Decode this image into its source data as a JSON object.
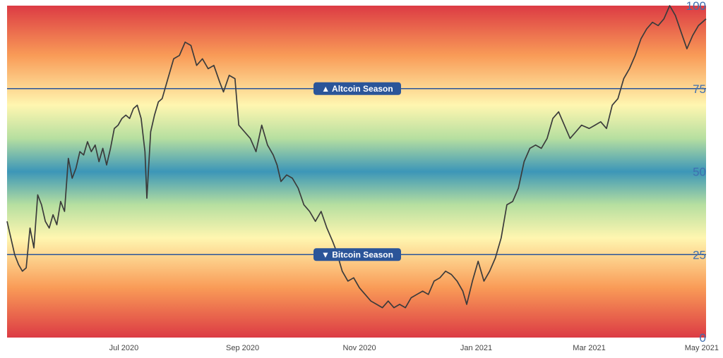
{
  "chart_data": {
    "type": "line",
    "title": "",
    "xlabel": "",
    "ylabel": "",
    "ylim": [
      0,
      100
    ],
    "xlim": [
      "2020-05-01",
      "2021-05-01"
    ],
    "grid": false,
    "y_ticks": [
      {
        "value": 100,
        "label": "100"
      },
      {
        "value": 75,
        "label": "75"
      },
      {
        "value": 50,
        "label": "50"
      },
      {
        "value": 25,
        "label": "25"
      },
      {
        "value": 0,
        "label": "0"
      }
    ],
    "x_ticks": [
      {
        "date": "2020-07-01",
        "label": "Jul 2020"
      },
      {
        "date": "2020-09-01",
        "label": "Sep 2020"
      },
      {
        "date": "2020-11-01",
        "label": "Nov 2020"
      },
      {
        "date": "2021-01-01",
        "label": "Jan 2021"
      },
      {
        "date": "2021-03-01",
        "label": "Mar 2021"
      },
      {
        "date": "2021-05-01",
        "label": "May 2021"
      }
    ],
    "thresholds": [
      {
        "value": 75,
        "label": "▲ Altcoin Season",
        "color": "#2b5599"
      },
      {
        "value": 25,
        "label": "▼ Bitcoin Season",
        "color": "#2b5599"
      }
    ],
    "background_gradient": [
      {
        "value": 100,
        "color": "#dc3b44"
      },
      {
        "value": 85,
        "color": "#f99b57"
      },
      {
        "value": 70,
        "color": "#fff6b0"
      },
      {
        "value": 60,
        "color": "#b6dfa0"
      },
      {
        "value": 50,
        "color": "#3c96b8"
      },
      {
        "value": 40,
        "color": "#b6dfa0"
      },
      {
        "value": 30,
        "color": "#fff6b0"
      },
      {
        "value": 15,
        "color": "#f99b57"
      },
      {
        "value": 0,
        "color": "#dc3b44"
      }
    ],
    "line_color": "#3b3b3b",
    "series": [
      {
        "points": [
          [
            "2020-05-01",
            35
          ],
          [
            "2020-05-03",
            30
          ],
          [
            "2020-05-05",
            25
          ],
          [
            "2020-05-07",
            22
          ],
          [
            "2020-05-09",
            20
          ],
          [
            "2020-05-11",
            21
          ],
          [
            "2020-05-13",
            33
          ],
          [
            "2020-05-15",
            27
          ],
          [
            "2020-05-17",
            43
          ],
          [
            "2020-05-19",
            40
          ],
          [
            "2020-05-21",
            35
          ],
          [
            "2020-05-23",
            33
          ],
          [
            "2020-05-25",
            37
          ],
          [
            "2020-05-27",
            34
          ],
          [
            "2020-05-29",
            41
          ],
          [
            "2020-05-31",
            38
          ],
          [
            "2020-06-02",
            54
          ],
          [
            "2020-06-04",
            48
          ],
          [
            "2020-06-06",
            51
          ],
          [
            "2020-06-08",
            56
          ],
          [
            "2020-06-10",
            55
          ],
          [
            "2020-06-12",
            59
          ],
          [
            "2020-06-14",
            56
          ],
          [
            "2020-06-16",
            58
          ],
          [
            "2020-06-18",
            53
          ],
          [
            "2020-06-20",
            57
          ],
          [
            "2020-06-22",
            52
          ],
          [
            "2020-06-24",
            57
          ],
          [
            "2020-06-26",
            63
          ],
          [
            "2020-06-28",
            64
          ],
          [
            "2020-06-30",
            66
          ],
          [
            "2020-07-02",
            67
          ],
          [
            "2020-07-04",
            66
          ],
          [
            "2020-07-06",
            69
          ],
          [
            "2020-07-08",
            70
          ],
          [
            "2020-07-10",
            66
          ],
          [
            "2020-07-12",
            56
          ],
          [
            "2020-07-13",
            42
          ],
          [
            "2020-07-15",
            62
          ],
          [
            "2020-07-17",
            67
          ],
          [
            "2020-07-19",
            71
          ],
          [
            "2020-07-21",
            72
          ],
          [
            "2020-07-24",
            78
          ],
          [
            "2020-07-27",
            84
          ],
          [
            "2020-07-30",
            85
          ],
          [
            "2020-08-02",
            89
          ],
          [
            "2020-08-05",
            88
          ],
          [
            "2020-08-08",
            82
          ],
          [
            "2020-08-11",
            84
          ],
          [
            "2020-08-14",
            81
          ],
          [
            "2020-08-17",
            82
          ],
          [
            "2020-08-20",
            77
          ],
          [
            "2020-08-22",
            74
          ],
          [
            "2020-08-25",
            79
          ],
          [
            "2020-08-28",
            78
          ],
          [
            "2020-08-30",
            64
          ],
          [
            "2020-09-02",
            62
          ],
          [
            "2020-09-05",
            60
          ],
          [
            "2020-09-08",
            56
          ],
          [
            "2020-09-11",
            64
          ],
          [
            "2020-09-14",
            58
          ],
          [
            "2020-09-17",
            55
          ],
          [
            "2020-09-19",
            52
          ],
          [
            "2020-09-21",
            47
          ],
          [
            "2020-09-24",
            49
          ],
          [
            "2020-09-27",
            48
          ],
          [
            "2020-09-30",
            45
          ],
          [
            "2020-10-03",
            40
          ],
          [
            "2020-10-06",
            38
          ],
          [
            "2020-10-09",
            35
          ],
          [
            "2020-10-12",
            38
          ],
          [
            "2020-10-15",
            33
          ],
          [
            "2020-10-18",
            29
          ],
          [
            "2020-10-20",
            26
          ],
          [
            "2020-10-23",
            20
          ],
          [
            "2020-10-26",
            17
          ],
          [
            "2020-10-29",
            18
          ],
          [
            "2020-11-01",
            15
          ],
          [
            "2020-11-04",
            13
          ],
          [
            "2020-11-07",
            11
          ],
          [
            "2020-11-10",
            10
          ],
          [
            "2020-11-13",
            9
          ],
          [
            "2020-11-16",
            11
          ],
          [
            "2020-11-19",
            9
          ],
          [
            "2020-11-22",
            10
          ],
          [
            "2020-11-25",
            9
          ],
          [
            "2020-11-28",
            12
          ],
          [
            "2020-12-01",
            13
          ],
          [
            "2020-12-04",
            14
          ],
          [
            "2020-12-07",
            13
          ],
          [
            "2020-12-10",
            17
          ],
          [
            "2020-12-13",
            18
          ],
          [
            "2020-12-16",
            20
          ],
          [
            "2020-12-19",
            19
          ],
          [
            "2020-12-22",
            17
          ],
          [
            "2020-12-25",
            14
          ],
          [
            "2020-12-27",
            10
          ],
          [
            "2020-12-30",
            17
          ],
          [
            "2021-01-02",
            23
          ],
          [
            "2021-01-05",
            17
          ],
          [
            "2021-01-08",
            20
          ],
          [
            "2021-01-11",
            24
          ],
          [
            "2021-01-14",
            30
          ],
          [
            "2021-01-17",
            40
          ],
          [
            "2021-01-20",
            41
          ],
          [
            "2021-01-23",
            45
          ],
          [
            "2021-01-26",
            53
          ],
          [
            "2021-01-29",
            57
          ],
          [
            "2021-02-01",
            58
          ],
          [
            "2021-02-04",
            57
          ],
          [
            "2021-02-07",
            60
          ],
          [
            "2021-02-10",
            66
          ],
          [
            "2021-02-13",
            68
          ],
          [
            "2021-02-16",
            64
          ],
          [
            "2021-02-19",
            60
          ],
          [
            "2021-02-22",
            62
          ],
          [
            "2021-02-25",
            64
          ],
          [
            "2021-03-01",
            63
          ],
          [
            "2021-03-04",
            64
          ],
          [
            "2021-03-07",
            65
          ],
          [
            "2021-03-10",
            63
          ],
          [
            "2021-03-13",
            70
          ],
          [
            "2021-03-16",
            72
          ],
          [
            "2021-03-19",
            78
          ],
          [
            "2021-03-22",
            81
          ],
          [
            "2021-03-25",
            85
          ],
          [
            "2021-03-28",
            90
          ],
          [
            "2021-03-31",
            93
          ],
          [
            "2021-04-03",
            95
          ],
          [
            "2021-04-06",
            94
          ],
          [
            "2021-04-09",
            96
          ],
          [
            "2021-04-12",
            100
          ],
          [
            "2021-04-15",
            97
          ],
          [
            "2021-04-18",
            92
          ],
          [
            "2021-04-21",
            87
          ],
          [
            "2021-04-24",
            91
          ],
          [
            "2021-04-27",
            94
          ],
          [
            "2021-05-01",
            96
          ]
        ]
      }
    ]
  }
}
